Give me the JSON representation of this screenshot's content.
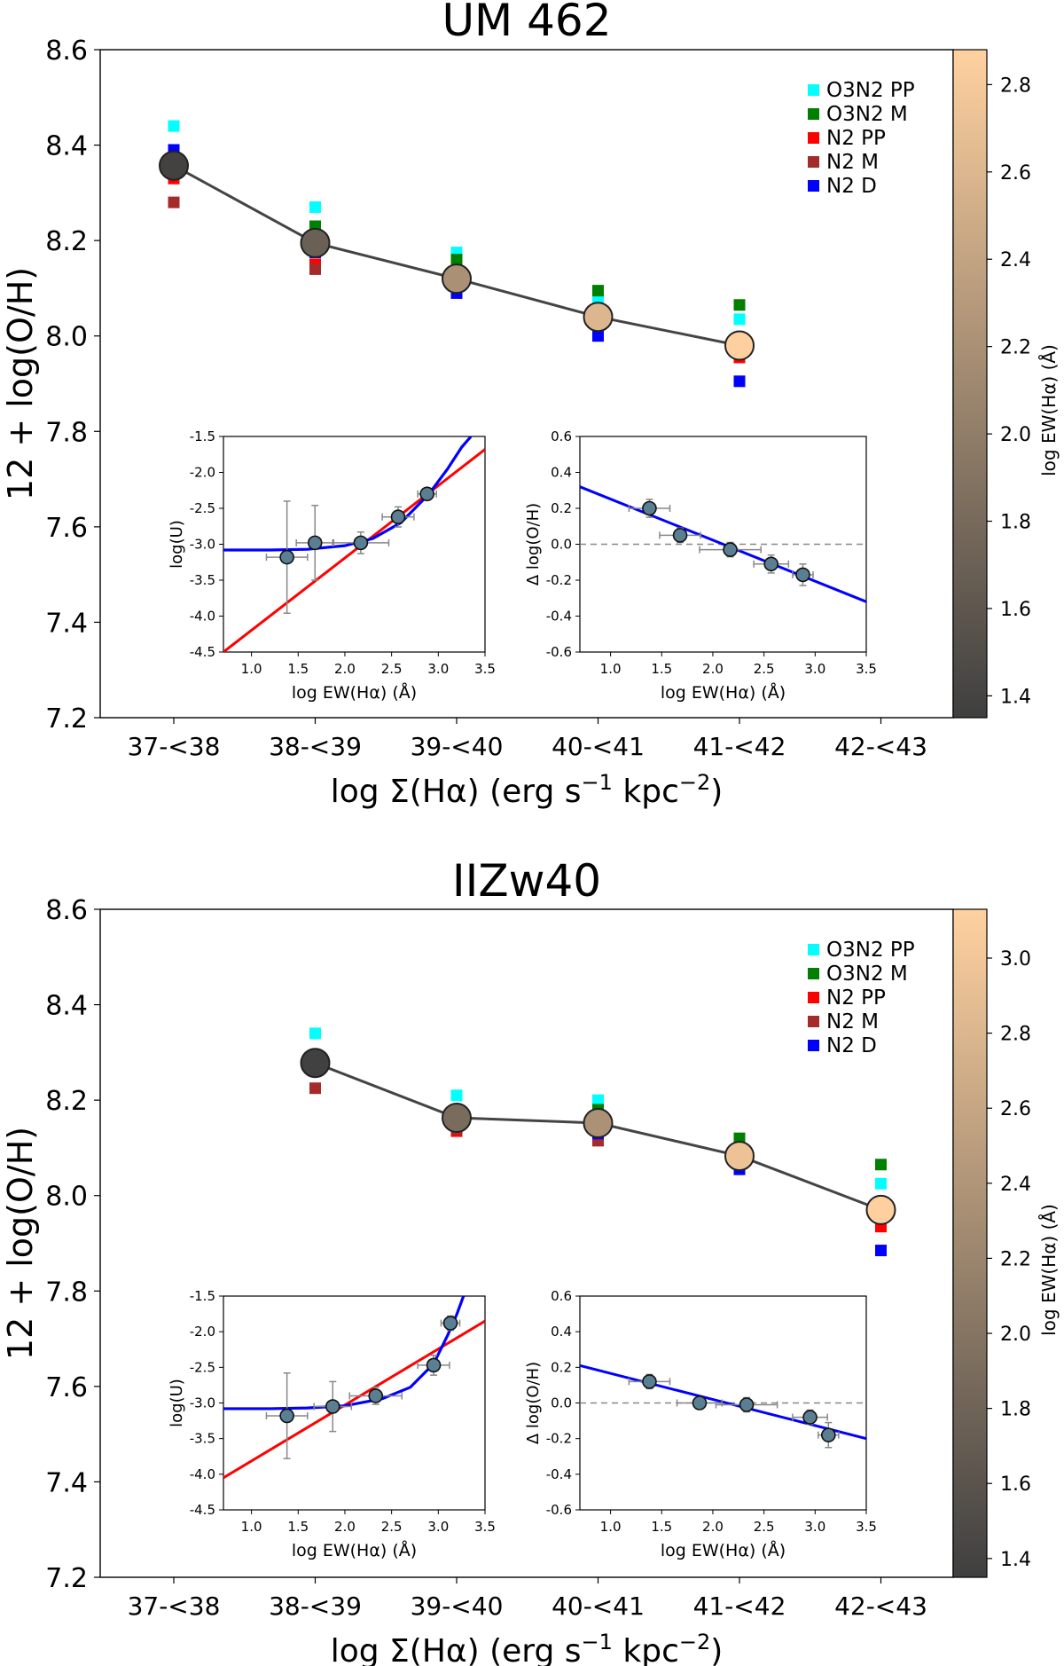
{
  "legend": [
    "O3N2 PP",
    "O3N2 M",
    "N2 PP",
    "N2 M",
    "N2 D"
  ],
  "legend_colors": [
    "#00ffff",
    "#008000",
    "#ff0000",
    "#a52a2a",
    "#0000ff"
  ],
  "colorbar_label": "log EW(Hα) (Å)",
  "colormap": [
    "#3f3f3f",
    "#ffd1a0"
  ],
  "xlabel_main": "log Σ(Hα) (erg s",
  "xlabel_sup1": "−1",
  "xlabel_mid": " kpc",
  "xlabel_sup2": "−2",
  "xlabel_end": ")",
  "ylabel_main": "12 + log(O/H)",
  "chart_data": [
    {
      "type": "scatter",
      "title": "UM 462",
      "categories": [
        "37-<38",
        "38-<39",
        "39-<40",
        "40-<41",
        "41-<42",
        "42-<43"
      ],
      "ylabel": "12 + log(O/H)",
      "ylim": [
        7.2,
        8.6
      ],
      "yticks": [
        "7.2",
        "7.4",
        "7.6",
        "7.8",
        "8.0",
        "8.2",
        "8.4",
        "8.6"
      ],
      "mean_line": {
        "x": [
          0,
          1,
          2,
          3,
          4
        ],
        "y": [
          8.357,
          8.195,
          8.12,
          8.04,
          7.98
        ],
        "ew": [
          1.38,
          1.7,
          2.2,
          2.6,
          2.87
        ]
      },
      "series": [
        {
          "name": "O3N2 PP",
          "x": [
            0,
            1,
            2,
            3,
            4
          ],
          "values": [
            8.44,
            8.27,
            8.175,
            8.075,
            8.035
          ]
        },
        {
          "name": "O3N2 M",
          "x": [
            0,
            1,
            2,
            3,
            4
          ],
          "values": [
            8.345,
            8.23,
            8.16,
            8.095,
            8.065
          ]
        },
        {
          "name": "N2 PP",
          "x": [
            0,
            1,
            2,
            3,
            4
          ],
          "values": [
            8.33,
            8.15,
            8.095,
            8.025,
            7.955
          ]
        },
        {
          "name": "N2 M",
          "x": [
            0,
            1,
            2,
            3,
            4
          ],
          "values": [
            8.28,
            8.14,
            8.09,
            8.035,
            7.965
          ]
        },
        {
          "name": "N2 D",
          "x": [
            0,
            1,
            2,
            3,
            4
          ],
          "values": [
            8.39,
            8.175,
            8.09,
            8.0,
            7.905
          ]
        }
      ],
      "colorbar": {
        "range": [
          1.35,
          2.88
        ],
        "ticks": [
          "1.4",
          "1.6",
          "1.8",
          "2.0",
          "2.2",
          "2.4",
          "2.6",
          "2.8"
        ]
      },
      "insets": [
        {
          "xlabel": "log EW(Hα) (Å)",
          "ylabel": "log(U)",
          "xlim": [
            0.7,
            3.5
          ],
          "ylim": [
            -4.5,
            -1.5
          ],
          "xticks": [
            "1.0",
            "1.5",
            "2.0",
            "2.5",
            "3.0",
            "3.5"
          ],
          "yticks": [
            "-4.5",
            "-4.0",
            "-3.5",
            "-3.0",
            "-2.5",
            "-2.0",
            "-1.5"
          ],
          "points": [
            {
              "x": 1.38,
              "y": -3.18,
              "xerr": 0.22,
              "yerr": 0.78
            },
            {
              "x": 1.68,
              "y": -2.98,
              "xerr": 0.2,
              "yerr": 0.52
            },
            {
              "x": 2.17,
              "y": -2.98,
              "xerr": 0.3,
              "yerr": 0.15
            },
            {
              "x": 2.57,
              "y": -2.62,
              "xerr": 0.17,
              "yerr": 0.14
            },
            {
              "x": 2.88,
              "y": -2.3,
              "xerr": 0.1,
              "yerr": 0.08
            }
          ],
          "linear_fit": {
            "x": [
              0.7,
              3.5
            ],
            "y": [
              -4.5,
              -1.68
            ]
          },
          "curve_fit": {
            "x": [
              0.7,
              1.2,
              1.6,
              2.0,
              2.3,
              2.6,
              2.9,
              3.1,
              3.25,
              3.35
            ],
            "y": [
              -3.08,
              -3.08,
              -3.07,
              -3.02,
              -2.92,
              -2.7,
              -2.3,
              -1.95,
              -1.65,
              -1.5
            ]
          }
        },
        {
          "xlabel": "log EW(Hα) (Å)",
          "ylabel": "Δ log(O/H)",
          "xlim": [
            0.7,
            3.5
          ],
          "ylim": [
            -0.6,
            0.6
          ],
          "xticks": [
            "1.0",
            "1.5",
            "2.0",
            "2.5",
            "3.0",
            "3.5"
          ],
          "yticks": [
            "-0.6",
            "-0.4",
            "-0.2",
            "0.0",
            "0.2",
            "0.4",
            "0.6"
          ],
          "points": [
            {
              "x": 1.38,
              "y": 0.2,
              "xerr": 0.2,
              "yerr": 0.05
            },
            {
              "x": 1.68,
              "y": 0.05,
              "xerr": 0.2,
              "yerr": 0.04
            },
            {
              "x": 2.17,
              "y": -0.03,
              "xerr": 0.3,
              "yerr": 0.04
            },
            {
              "x": 2.57,
              "y": -0.11,
              "xerr": 0.17,
              "yerr": 0.05
            },
            {
              "x": 2.88,
              "y": -0.17,
              "xerr": 0.1,
              "yerr": 0.06
            }
          ],
          "linear_fit": {
            "x": [
              0.7,
              3.5
            ],
            "y": [
              0.32,
              -0.32
            ]
          },
          "zero_line": 0.0
        }
      ]
    },
    {
      "type": "scatter",
      "title": "IIZw40",
      "categories": [
        "37-<38",
        "38-<39",
        "39-<40",
        "40-<41",
        "41-<42",
        "42-<43"
      ],
      "ylabel": "12 + log(O/H)",
      "ylim": [
        7.2,
        8.6
      ],
      "yticks": [
        "7.2",
        "7.4",
        "7.6",
        "7.8",
        "8.0",
        "8.2",
        "8.4",
        "8.6"
      ],
      "mean_line": {
        "x": [
          1,
          2,
          3,
          4,
          5
        ],
        "y": [
          8.278,
          8.163,
          8.152,
          8.083,
          7.97
        ],
        "ew": [
          1.38,
          1.9,
          2.35,
          2.95,
          3.12
        ]
      },
      "series": [
        {
          "name": "O3N2 PP",
          "x": [
            1,
            2,
            3,
            4,
            5
          ],
          "values": [
            8.34,
            8.21,
            8.2,
            8.11,
            8.025
          ]
        },
        {
          "name": "O3N2 M",
          "x": [
            1,
            2,
            3,
            4,
            5
          ],
          "values": [
            8.265,
            8.165,
            8.18,
            8.12,
            8.065
          ]
        },
        {
          "name": "N2 PP",
          "x": [
            1,
            2,
            3,
            4,
            5
          ],
          "values": [
            8.27,
            8.135,
            8.12,
            8.07,
            7.935
          ]
        },
        {
          "name": "N2 M",
          "x": [
            1,
            2,
            3,
            4,
            5
          ],
          "values": [
            8.225,
            8.14,
            8.115,
            8.065,
            7.96
          ]
        },
        {
          "name": "N2 D",
          "x": [
            1,
            2,
            3,
            4,
            5
          ],
          "values": [
            8.285,
            8.15,
            8.13,
            8.055,
            7.885
          ]
        }
      ],
      "colorbar": {
        "range": [
          1.35,
          3.13
        ],
        "ticks": [
          "1.4",
          "1.6",
          "1.8",
          "2.0",
          "2.2",
          "2.4",
          "2.6",
          "2.8",
          "3.0"
        ]
      },
      "insets": [
        {
          "xlabel": "log EW(Hα) (Å)",
          "ylabel": "log(U)",
          "xlim": [
            0.7,
            3.5
          ],
          "ylim": [
            -4.5,
            -1.5
          ],
          "xticks": [
            "1.0",
            "1.5",
            "2.0",
            "2.5",
            "3.0",
            "3.5"
          ],
          "yticks": [
            "-4.5",
            "-4.0",
            "-3.5",
            "-3.0",
            "-2.5",
            "-2.0",
            "-1.5"
          ],
          "points": [
            {
              "x": 1.38,
              "y": -3.18,
              "xerr": 0.22,
              "yerr": 0.6
            },
            {
              "x": 1.87,
              "y": -3.05,
              "xerr": 0.2,
              "yerr": 0.35
            },
            {
              "x": 2.33,
              "y": -2.9,
              "xerr": 0.28,
              "yerr": 0.12
            },
            {
              "x": 2.95,
              "y": -2.47,
              "xerr": 0.17,
              "yerr": 0.14
            },
            {
              "x": 3.13,
              "y": -1.88,
              "xerr": 0.1,
              "yerr": 0.1
            }
          ],
          "linear_fit": {
            "x": [
              0.7,
              3.5
            ],
            "y": [
              -4.05,
              -1.85
            ]
          },
          "curve_fit": {
            "x": [
              0.7,
              1.2,
              1.6,
              2.0,
              2.4,
              2.7,
              2.95,
              3.1,
              3.2,
              3.27
            ],
            "y": [
              -3.08,
              -3.08,
              -3.07,
              -3.04,
              -2.94,
              -2.78,
              -2.45,
              -2.05,
              -1.75,
              -1.5
            ]
          }
        },
        {
          "xlabel": "log EW(Hα) (Å)",
          "ylabel": "Δ log(O/H)",
          "xlim": [
            0.7,
            3.5
          ],
          "ylim": [
            -0.6,
            0.6
          ],
          "xticks": [
            "1.0",
            "1.5",
            "2.0",
            "2.5",
            "3.0",
            "3.5"
          ],
          "yticks": [
            "-0.6",
            "-0.4",
            "-0.2",
            "0.0",
            "0.2",
            "0.4",
            "0.6"
          ],
          "points": [
            {
              "x": 1.38,
              "y": 0.12,
              "xerr": 0.2,
              "yerr": 0.04
            },
            {
              "x": 1.87,
              "y": 0.0,
              "xerr": 0.22,
              "yerr": 0.03
            },
            {
              "x": 2.33,
              "y": -0.01,
              "xerr": 0.3,
              "yerr": 0.04
            },
            {
              "x": 2.95,
              "y": -0.08,
              "xerr": 0.17,
              "yerr": 0.04
            },
            {
              "x": 3.13,
              "y": -0.18,
              "xerr": 0.1,
              "yerr": 0.07
            }
          ],
          "linear_fit": {
            "x": [
              0.7,
              3.5
            ],
            "y": [
              0.21,
              -0.2
            ]
          },
          "zero_line": 0.0
        }
      ]
    }
  ]
}
